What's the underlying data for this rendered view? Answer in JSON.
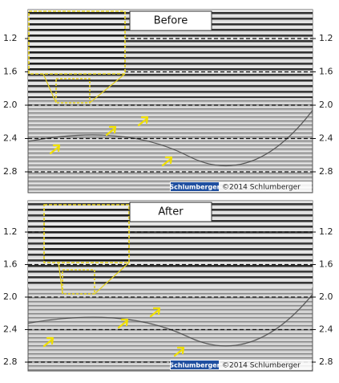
{
  "panels": [
    {
      "title": "Before",
      "ticks": [
        "1.2",
        "1.6",
        "2.0",
        "2.4",
        "2.8"
      ],
      "logo": "Schlumberger",
      "copyright": "©2014 Schlumberger"
    },
    {
      "title": "After",
      "ticks": [
        "1.2",
        "1.6",
        "2.0",
        "2.4",
        "2.8"
      ],
      "logo": "Schlumberger",
      "copyright": "©2014 Schlumberger"
    }
  ]
}
